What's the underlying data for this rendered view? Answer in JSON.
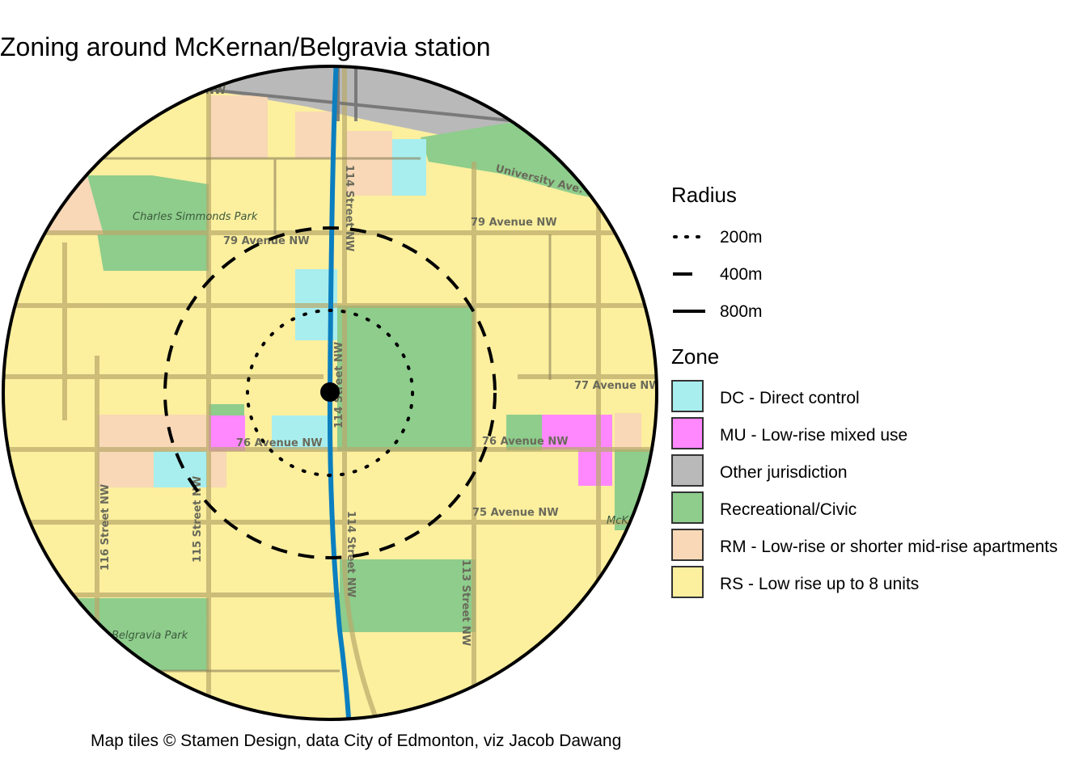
{
  "title": "Zoning around McKernan/Belgravia station",
  "caption": "Map tiles © Stamen Design, data City of Edmonton, viz Jacob Dawang",
  "legend": {
    "radius_title": "Radius",
    "radius_items": [
      {
        "label": "200m",
        "style": "dotted"
      },
      {
        "label": "400m",
        "style": "dashed"
      },
      {
        "label": "800m",
        "style": "solid"
      }
    ],
    "zone_title": "Zone",
    "zone_items": [
      {
        "label": "DC - Direct control",
        "color": "#a8eeee"
      },
      {
        "label": "MU - Low-rise mixed use",
        "color": "#ff88ff"
      },
      {
        "label": "Other jurisdiction",
        "color": "#b9b9b9"
      },
      {
        "label": "Recreational/Civic",
        "color": "#8ecd8c"
      },
      {
        "label": "RM - Low-rise or shorter mid-rise apartments",
        "color": "#f8d8b6"
      },
      {
        "label": "RS - Low rise up to 8 units",
        "color": "#fcef9e"
      }
    ]
  },
  "map": {
    "streets": {
      "s_79_west": "79 Avenue NW",
      "s_79_east": "79 Avenue NW",
      "s_77": "77 Avenue NW",
      "s_76_west": "76 Avenue NW",
      "s_76_east": "76 Avenue NW",
      "s_75": "75 Avenue NW",
      "s_114_north": "114 Street NW",
      "s_114_center": "114 Street NW",
      "s_114_south": "114 Street NW",
      "s_116": "116 Street NW",
      "s_115": "115 Street NW",
      "s_113": "113 Street NW",
      "s_university": "University Ave. NW",
      "s_top_nw": "NW"
    },
    "parks": {
      "charles": "Charles Simmonds Park",
      "belgravia": "Belgravia Park",
      "mck": "McK"
    },
    "colors": {
      "rs": "#fcef9e",
      "rm": "#f8d8b6",
      "dc": "#a8eeee",
      "mu": "#ff88ff",
      "rec": "#8ecd8c",
      "other": "#b9b9b9",
      "line": "#0b7fbf",
      "road": "#b9a96a"
    }
  }
}
